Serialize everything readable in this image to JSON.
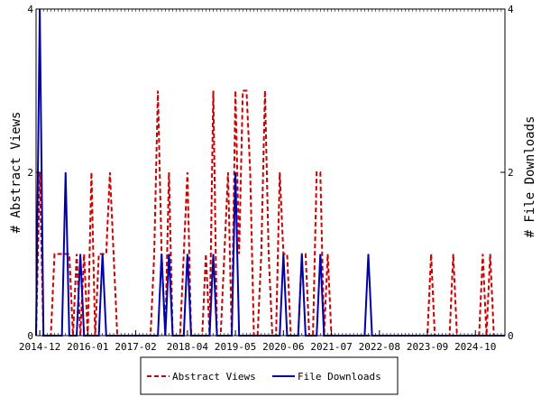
{
  "chart_data": {
    "type": "line",
    "ylabel_left": "# Abstract Views",
    "ylabel_right": "# File Downloads",
    "ylim": [
      0,
      4
    ],
    "x_range": [
      "2014-11",
      "2025-06"
    ],
    "yticks": [
      0,
      2,
      4
    ],
    "xtick_labels": [
      {
        "date": "2014-12",
        "label": "2014-12"
      },
      {
        "date": "2016-01",
        "label": "2016-01"
      },
      {
        "date": "2017-02",
        "label": "2017-02"
      },
      {
        "date": "2018-04",
        "label": "2018-04"
      },
      {
        "date": "2019-05",
        "label": "2019-05"
      },
      {
        "date": "2020-06",
        "label": "2020-06"
      },
      {
        "date": "2021-07",
        "label": "2021-07"
      },
      {
        "date": "2022-08",
        "label": "2022-08"
      },
      {
        "date": "2023-09",
        "label": "2023-09"
      },
      {
        "date": "2024-10",
        "label": "2024-10"
      }
    ],
    "legend_position": "bottom-center",
    "series": [
      {
        "name": "Abstract Views",
        "color": "#cc0000",
        "style": "dashed",
        "axis": "left",
        "points": [
          [
            "2014-11",
            0
          ],
          [
            "2014-12",
            2
          ],
          [
            "2015-01",
            0
          ],
          [
            "2015-02",
            0
          ],
          [
            "2015-03",
            0
          ],
          [
            "2015-04",
            1
          ],
          [
            "2015-05",
            1
          ],
          [
            "2015-06",
            1
          ],
          [
            "2015-07",
            1
          ],
          [
            "2015-08",
            1
          ],
          [
            "2015-09",
            0
          ],
          [
            "2015-10",
            1
          ],
          [
            "2015-11",
            0
          ],
          [
            "2015-12",
            1
          ],
          [
            "2016-01",
            0
          ],
          [
            "2016-02",
            2
          ],
          [
            "2016-03",
            0
          ],
          [
            "2016-04",
            1
          ],
          [
            "2016-05",
            1
          ],
          [
            "2016-06",
            1
          ],
          [
            "2016-07",
            2
          ],
          [
            "2016-08",
            1
          ],
          [
            "2016-09",
            0
          ],
          [
            "2016-10",
            0
          ],
          [
            "2016-11",
            0
          ],
          [
            "2016-12",
            0
          ],
          [
            "2017-01",
            0
          ],
          [
            "2017-02",
            0
          ],
          [
            "2017-03",
            0
          ],
          [
            "2017-04",
            0
          ],
          [
            "2017-05",
            0
          ],
          [
            "2017-06",
            0
          ],
          [
            "2017-07",
            1
          ],
          [
            "2017-08",
            3
          ],
          [
            "2017-09",
            1
          ],
          [
            "2017-10",
            0
          ],
          [
            "2017-11",
            2
          ],
          [
            "2017-12",
            0
          ],
          [
            "2018-01",
            0
          ],
          [
            "2018-02",
            0
          ],
          [
            "2018-03",
            1
          ],
          [
            "2018-04",
            2
          ],
          [
            "2018-05",
            0
          ],
          [
            "2018-06",
            0
          ],
          [
            "2018-07",
            0
          ],
          [
            "2018-08",
            0
          ],
          [
            "2018-09",
            1
          ],
          [
            "2018-10",
            0
          ],
          [
            "2018-11",
            3
          ],
          [
            "2018-12",
            0
          ],
          [
            "2019-01",
            0
          ],
          [
            "2019-02",
            1
          ],
          [
            "2019-03",
            2
          ],
          [
            "2019-04",
            0
          ],
          [
            "2019-05",
            3
          ],
          [
            "2019-06",
            1
          ],
          [
            "2019-07",
            3
          ],
          [
            "2019-08",
            3
          ],
          [
            "2019-09",
            2
          ],
          [
            "2019-10",
            0
          ],
          [
            "2019-11",
            0
          ],
          [
            "2019-12",
            1
          ],
          [
            "2020-01",
            3
          ],
          [
            "2020-02",
            1
          ],
          [
            "2020-03",
            0
          ],
          [
            "2020-04",
            0
          ],
          [
            "2020-05",
            2
          ],
          [
            "2020-06",
            1
          ],
          [
            "2020-07",
            1
          ],
          [
            "2020-08",
            0
          ],
          [
            "2020-09",
            0
          ],
          [
            "2020-10",
            0
          ],
          [
            "2020-11",
            1
          ],
          [
            "2020-12",
            1
          ],
          [
            "2021-01",
            0
          ],
          [
            "2021-02",
            0
          ],
          [
            "2021-03",
            2
          ],
          [
            "2021-04",
            2
          ],
          [
            "2021-05",
            0
          ],
          [
            "2021-06",
            1
          ],
          [
            "2021-07",
            0
          ],
          [
            "2021-08",
            0
          ],
          [
            "2021-09",
            0
          ],
          [
            "2021-10",
            0
          ],
          [
            "2021-11",
            0
          ],
          [
            "2021-12",
            0
          ],
          [
            "2022-01",
            0
          ],
          [
            "2022-02",
            0
          ],
          [
            "2022-03",
            0
          ],
          [
            "2022-04",
            0
          ],
          [
            "2022-05",
            0
          ],
          [
            "2022-06",
            0
          ],
          [
            "2022-07",
            0
          ],
          [
            "2022-08",
            0
          ],
          [
            "2022-09",
            0
          ],
          [
            "2022-10",
            0
          ],
          [
            "2022-11",
            0
          ],
          [
            "2022-12",
            0
          ],
          [
            "2023-01",
            0
          ],
          [
            "2023-02",
            0
          ],
          [
            "2023-03",
            0
          ],
          [
            "2023-04",
            0
          ],
          [
            "2023-05",
            0
          ],
          [
            "2023-06",
            0
          ],
          [
            "2023-07",
            0
          ],
          [
            "2023-08",
            0
          ],
          [
            "2023-09",
            0
          ],
          [
            "2023-10",
            1
          ],
          [
            "2023-11",
            0
          ],
          [
            "2023-12",
            0
          ],
          [
            "2024-01",
            0
          ],
          [
            "2024-02",
            0
          ],
          [
            "2024-03",
            0
          ],
          [
            "2024-04",
            1
          ],
          [
            "2024-05",
            0
          ],
          [
            "2024-06",
            0
          ],
          [
            "2024-07",
            0
          ],
          [
            "2024-08",
            0
          ],
          [
            "2024-09",
            0
          ],
          [
            "2024-10",
            0
          ],
          [
            "2024-11",
            0
          ],
          [
            "2024-12",
            1
          ],
          [
            "2025-01",
            0
          ],
          [
            "2025-02",
            1
          ],
          [
            "2025-03",
            0
          ],
          [
            "2025-04",
            0
          ],
          [
            "2025-05",
            0
          ],
          [
            "2025-06",
            0
          ]
        ]
      },
      {
        "name": "File Downloads",
        "color": "#0000aa",
        "style": "solid",
        "axis": "right",
        "points": [
          [
            "2014-11",
            0
          ],
          [
            "2014-12",
            4
          ],
          [
            "2015-01",
            0
          ],
          [
            "2015-02",
            0
          ],
          [
            "2015-03",
            0
          ],
          [
            "2015-04",
            0
          ],
          [
            "2015-05",
            0
          ],
          [
            "2015-06",
            0
          ],
          [
            "2015-07",
            2
          ],
          [
            "2015-08",
            0
          ],
          [
            "2015-09",
            0
          ],
          [
            "2015-10",
            0
          ],
          [
            "2015-11",
            1
          ],
          [
            "2015-12",
            0
          ],
          [
            "2016-01",
            0
          ],
          [
            "2016-02",
            0
          ],
          [
            "2016-03",
            0
          ],
          [
            "2016-04",
            0
          ],
          [
            "2016-05",
            1
          ],
          [
            "2016-06",
            0
          ],
          [
            "2016-07",
            0
          ],
          [
            "2016-08",
            0
          ],
          [
            "2016-09",
            0
          ],
          [
            "2016-10",
            0
          ],
          [
            "2016-11",
            0
          ],
          [
            "2016-12",
            0
          ],
          [
            "2017-01",
            0
          ],
          [
            "2017-02",
            0
          ],
          [
            "2017-03",
            0
          ],
          [
            "2017-04",
            0
          ],
          [
            "2017-05",
            0
          ],
          [
            "2017-06",
            0
          ],
          [
            "2017-07",
            0
          ],
          [
            "2017-08",
            0
          ],
          [
            "2017-09",
            1
          ],
          [
            "2017-10",
            0
          ],
          [
            "2017-11",
            1
          ],
          [
            "2017-12",
            0
          ],
          [
            "2018-01",
            0
          ],
          [
            "2018-02",
            0
          ],
          [
            "2018-03",
            0
          ],
          [
            "2018-04",
            1
          ],
          [
            "2018-05",
            0
          ],
          [
            "2018-06",
            0
          ],
          [
            "2018-07",
            0
          ],
          [
            "2018-08",
            0
          ],
          [
            "2018-09",
            0
          ],
          [
            "2018-10",
            0
          ],
          [
            "2018-11",
            1
          ],
          [
            "2018-12",
            0
          ],
          [
            "2019-01",
            0
          ],
          [
            "2019-02",
            0
          ],
          [
            "2019-03",
            0
          ],
          [
            "2019-04",
            0
          ],
          [
            "2019-05",
            2
          ],
          [
            "2019-06",
            0
          ],
          [
            "2019-07",
            0
          ],
          [
            "2019-08",
            0
          ],
          [
            "2019-09",
            0
          ],
          [
            "2019-10",
            0
          ],
          [
            "2019-11",
            0
          ],
          [
            "2019-12",
            0
          ],
          [
            "2020-01",
            0
          ],
          [
            "2020-02",
            0
          ],
          [
            "2020-03",
            0
          ],
          [
            "2020-04",
            0
          ],
          [
            "2020-05",
            0
          ],
          [
            "2020-06",
            1
          ],
          [
            "2020-07",
            0
          ],
          [
            "2020-08",
            0
          ],
          [
            "2020-09",
            0
          ],
          [
            "2020-10",
            0
          ],
          [
            "2020-11",
            1
          ],
          [
            "2020-12",
            0
          ],
          [
            "2021-01",
            0
          ],
          [
            "2021-02",
            0
          ],
          [
            "2021-03",
            0
          ],
          [
            "2021-04",
            1
          ],
          [
            "2021-05",
            0
          ],
          [
            "2021-06",
            0
          ],
          [
            "2021-07",
            0
          ],
          [
            "2021-08",
            0
          ],
          [
            "2021-09",
            0
          ],
          [
            "2021-10",
            0
          ],
          [
            "2021-11",
            0
          ],
          [
            "2021-12",
            0
          ],
          [
            "2022-01",
            0
          ],
          [
            "2022-02",
            0
          ],
          [
            "2022-03",
            0
          ],
          [
            "2022-04",
            0
          ],
          [
            "2022-05",
            1
          ],
          [
            "2022-06",
            0
          ],
          [
            "2022-07",
            0
          ],
          [
            "2022-08",
            0
          ],
          [
            "2022-09",
            0
          ],
          [
            "2022-10",
            0
          ],
          [
            "2022-11",
            0
          ],
          [
            "2022-12",
            0
          ],
          [
            "2023-01",
            0
          ],
          [
            "2023-02",
            0
          ],
          [
            "2023-03",
            0
          ],
          [
            "2023-04",
            0
          ],
          [
            "2023-05",
            0
          ],
          [
            "2023-06",
            0
          ],
          [
            "2023-07",
            0
          ],
          [
            "2023-08",
            0
          ],
          [
            "2023-09",
            0
          ],
          [
            "2023-10",
            0
          ],
          [
            "2023-11",
            0
          ],
          [
            "2023-12",
            0
          ],
          [
            "2024-01",
            0
          ],
          [
            "2024-02",
            0
          ],
          [
            "2024-03",
            0
          ],
          [
            "2024-04",
            0
          ],
          [
            "2024-05",
            0
          ],
          [
            "2024-06",
            0
          ],
          [
            "2024-07",
            0
          ],
          [
            "2024-08",
            0
          ],
          [
            "2024-09",
            0
          ],
          [
            "2024-10",
            0
          ],
          [
            "2024-11",
            0
          ],
          [
            "2024-12",
            0
          ],
          [
            "2025-01",
            0
          ],
          [
            "2025-02",
            0
          ],
          [
            "2025-03",
            0
          ],
          [
            "2025-04",
            0
          ],
          [
            "2025-05",
            0
          ],
          [
            "2025-06",
            0
          ]
        ]
      }
    ]
  },
  "legend": {
    "abstract_label": "Abstract Views",
    "downloads_label": "File Downloads"
  }
}
